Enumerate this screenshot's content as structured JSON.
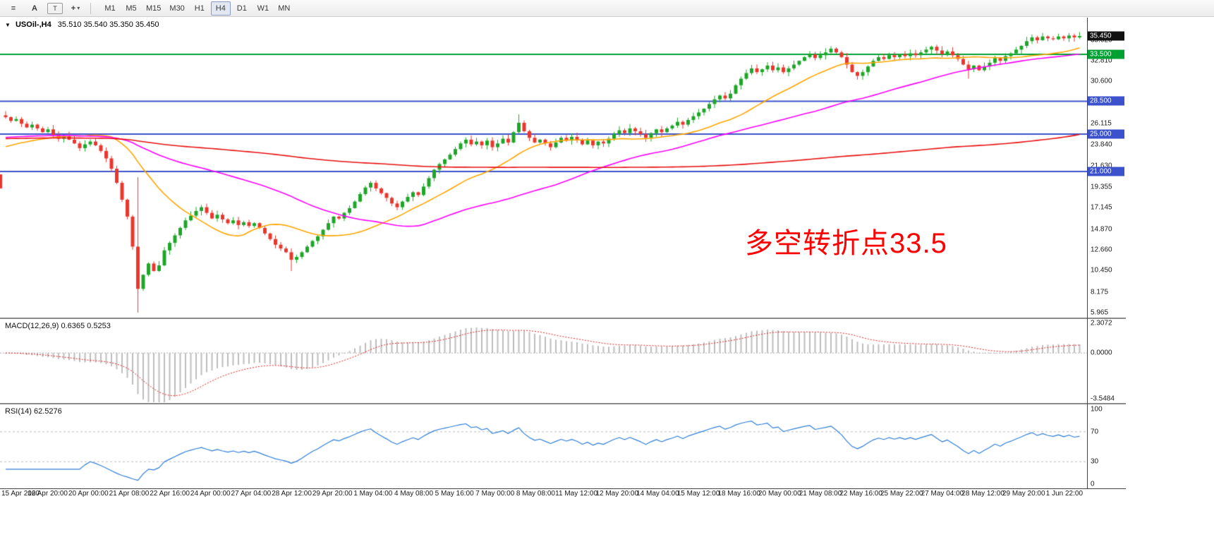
{
  "toolbar": {
    "tool_buttons": [
      {
        "name": "bars-arrange-icon",
        "glyph": "≡"
      },
      {
        "name": "font-tool-icon",
        "glyph": "A"
      },
      {
        "name": "text-tool-icon",
        "glyph": "T"
      },
      {
        "name": "crosshair-tool-icon",
        "glyph": "+",
        "caret": "▾"
      }
    ],
    "timeframes": [
      "M1",
      "M5",
      "M15",
      "M30",
      "H1",
      "H4",
      "D1",
      "W1",
      "MN"
    ],
    "active_timeframe": "H4"
  },
  "chart": {
    "collapse_icon": "▼",
    "symbol_title": "USOil-,H4",
    "ohlc_text": "35.510 35.540 35.350 35.450",
    "annotation": "多空转折点33.5",
    "annotation_color": "#ff0000",
    "price_axis_labels": [
      35.02,
      32.81,
      30.6,
      26.115,
      23.84,
      21.63,
      19.355,
      17.145,
      14.87,
      12.66,
      10.45,
      8.175,
      5.965
    ],
    "badges": [
      {
        "text": "35.450",
        "price": 35.45,
        "bg": "#111111"
      },
      {
        "text": "33.500",
        "price": 33.5,
        "bg": "#00a032"
      },
      {
        "text": "28.500",
        "price": 28.5,
        "bg": "#3c52cc"
      },
      {
        "text": "25.000",
        "price": 25.0,
        "bg": "#3c52cc"
      },
      {
        "text": "21.000",
        "price": 21.0,
        "bg": "#3c52cc"
      }
    ]
  },
  "macd_panel": {
    "label": "MACD(12,26,9) 0.6365 0.5253",
    "axis": [
      {
        "text": "2.3072",
        "v": 2.3072
      },
      {
        "text": "0.0000",
        "v": 0
      },
      {
        "text": "-3.5484",
        "v": -3.5484
      }
    ]
  },
  "rsi_panel": {
    "label": "RSI(14) 62.5276",
    "axis": [
      {
        "text": "100",
        "v": 100
      },
      {
        "text": "70",
        "v": 70
      },
      {
        "text": "30",
        "v": 30
      },
      {
        "text": "0",
        "v": 0
      }
    ]
  },
  "time_axis": [
    "15 Apr 2020",
    "16 Apr 20:00",
    "20 Apr 00:00",
    "21 Apr 08:00",
    "22 Apr 16:00",
    "24 Apr 00:00",
    "27 Apr 04:00",
    "28 Apr 12:00",
    "29 Apr 20:00",
    "1 May 04:00",
    "4 May 08:00",
    "5 May 16:00",
    "7 May 00:00",
    "8 May 08:00",
    "11 May 12:00",
    "12 May 20:00",
    "14 May 04:00",
    "15 May 12:00",
    "18 May 16:00",
    "20 May 00:00",
    "21 May 08:00",
    "22 May 16:00",
    "25 May 22:00",
    "27 May 04:00",
    "28 May 12:00",
    "29 May 20:00",
    "1 Jun 22:00"
  ],
  "chart_data": {
    "type": "candlestick",
    "symbol": "USOil-",
    "timeframe": "H4",
    "current_bar": {
      "open": 35.51,
      "high": 35.54,
      "low": 35.35,
      "close": 35.45
    },
    "open_first": 27.0,
    "closes": [
      26.8,
      26.4,
      26.6,
      26.1,
      25.7,
      26.0,
      25.6,
      25.2,
      25.5,
      24.9,
      24.5,
      24.8,
      24.4,
      24.0,
      23.5,
      23.9,
      24.2,
      23.8,
      23.2,
      22.4,
      21.3,
      19.8,
      18.0,
      16.2,
      13.0,
      8.5,
      10.0,
      11.2,
      10.4,
      11.0,
      12.6,
      13.4,
      14.2,
      15.0,
      15.8,
      16.3,
      16.8,
      17.2,
      16.6,
      16.0,
      16.4,
      15.9,
      15.5,
      15.8,
      15.3,
      15.6,
      15.2,
      15.5,
      15.0,
      14.4,
      13.8,
      13.2,
      12.8,
      12.4,
      11.6,
      11.9,
      12.4,
      13.0,
      13.6,
      14.1,
      14.8,
      15.5,
      16.2,
      16.0,
      16.6,
      17.1,
      17.8,
      18.6,
      19.3,
      19.8,
      19.2,
      18.7,
      18.2,
      17.6,
      17.2,
      17.8,
      18.3,
      18.8,
      18.5,
      19.4,
      20.3,
      21.2,
      21.8,
      22.3,
      22.8,
      23.4,
      24.0,
      24.4,
      23.9,
      24.2,
      23.8,
      24.3,
      23.6,
      24.0,
      24.5,
      24.1,
      25.2,
      26.2,
      25.3,
      24.6,
      24.1,
      24.4,
      24.0,
      23.6,
      24.1,
      24.6,
      24.3,
      24.7,
      24.4,
      23.9,
      24.3,
      23.8,
      24.2,
      24.0,
      24.5,
      25.0,
      25.4,
      25.1,
      25.6,
      25.3,
      25.0,
      24.6,
      25.1,
      25.5,
      25.2,
      25.6,
      25.9,
      26.3,
      26.0,
      26.5,
      26.9,
      27.3,
      27.7,
      28.2,
      28.7,
      29.1,
      28.8,
      29.3,
      30.2,
      30.9,
      31.5,
      32.0,
      31.6,
      31.9,
      32.3,
      31.8,
      32.1,
      31.6,
      32.0,
      32.4,
      32.8,
      33.2,
      33.5,
      33.1,
      33.4,
      33.7,
      34.1,
      33.7,
      33.2,
      32.4,
      31.6,
      31.2,
      31.6,
      32.2,
      32.8,
      33.2,
      33.0,
      33.4,
      33.2,
      33.5,
      33.3,
      33.6,
      33.4,
      33.7,
      34.0,
      34.3,
      33.9,
      33.5,
      33.8,
      33.4,
      33.0,
      32.4,
      31.9,
      32.3,
      31.8,
      32.2,
      32.6,
      33.1,
      32.8,
      33.3,
      33.6,
      34.0,
      34.4,
      34.9,
      35.3,
      35.0,
      35.4,
      35.2,
      35.1,
      35.4,
      35.2,
      35.5,
      35.3,
      35.45
    ],
    "wick_overrides": {
      "25": {
        "low": 5.97,
        "high": 20.4
      },
      "37": {
        "high": 17.45
      },
      "54": {
        "low": 10.4
      },
      "97": {
        "high": 27.1
      },
      "161": {
        "low": 30.8
      },
      "182": {
        "low": 30.9
      }
    },
    "partial_prev_candle": {
      "o": 20.7,
      "c": 19.2
    },
    "up_color": "#1fa629",
    "down_color": "#ea372e",
    "moving_averages": [
      {
        "period": 21,
        "pad": 23.5,
        "color": "#ffa500"
      },
      {
        "period": 55,
        "pad": 24.6,
        "color": "#ff00ff"
      },
      {
        "period": 180,
        "pad": 24.5,
        "color": "#e81010"
      }
    ],
    "hlines": [
      {
        "price": 33.5,
        "color": "#00a032",
        "width": 2
      },
      {
        "price": 28.5,
        "color": "#3c52cc",
        "width": 2
      },
      {
        "price": 25.0,
        "color": "#3c52cc",
        "width": 2
      },
      {
        "price": 21.0,
        "color": "#3c52cc",
        "width": 2
      }
    ],
    "macd": {
      "fast": 12,
      "slow": 26,
      "signal": 9,
      "hist_color": "#bdbdbd",
      "signal_color": "#e02020",
      "range_top": 2.3072,
      "range_bottom": -3.5484,
      "current": [
        0.6365,
        0.5253
      ]
    },
    "rsi": {
      "period": 14,
      "color": "#2f7ed8",
      "levels": [
        30,
        70
      ],
      "range": [
        0,
        100
      ],
      "current": 62.5276
    }
  }
}
